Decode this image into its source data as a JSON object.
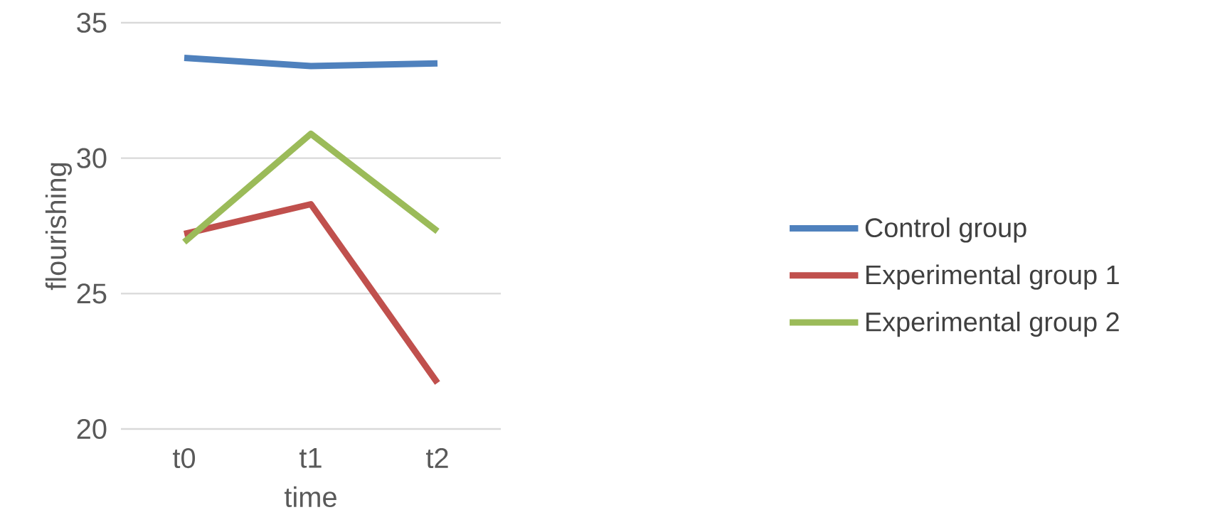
{
  "chart_data": {
    "type": "line",
    "xlabel": "time",
    "ylabel": "flourishing",
    "categories": [
      "t0",
      "t1",
      "t2"
    ],
    "series": [
      {
        "name": "Control group",
        "color": "#4f81bd",
        "values": [
          33.7,
          33.4,
          33.5
        ]
      },
      {
        "name": "Experimental group 1",
        "color": "#c0504d",
        "values": [
          27.2,
          28.3,
          21.7
        ]
      },
      {
        "name": "Experimental group 2",
        "color": "#9bbb59",
        "values": [
          26.9,
          30.9,
          27.3
        ]
      }
    ],
    "ylim": [
      20,
      35
    ],
    "yticks": [
      20,
      25,
      30,
      35
    ],
    "grid": "y",
    "legend": "right",
    "marker": "none",
    "line_style": "solid"
  }
}
